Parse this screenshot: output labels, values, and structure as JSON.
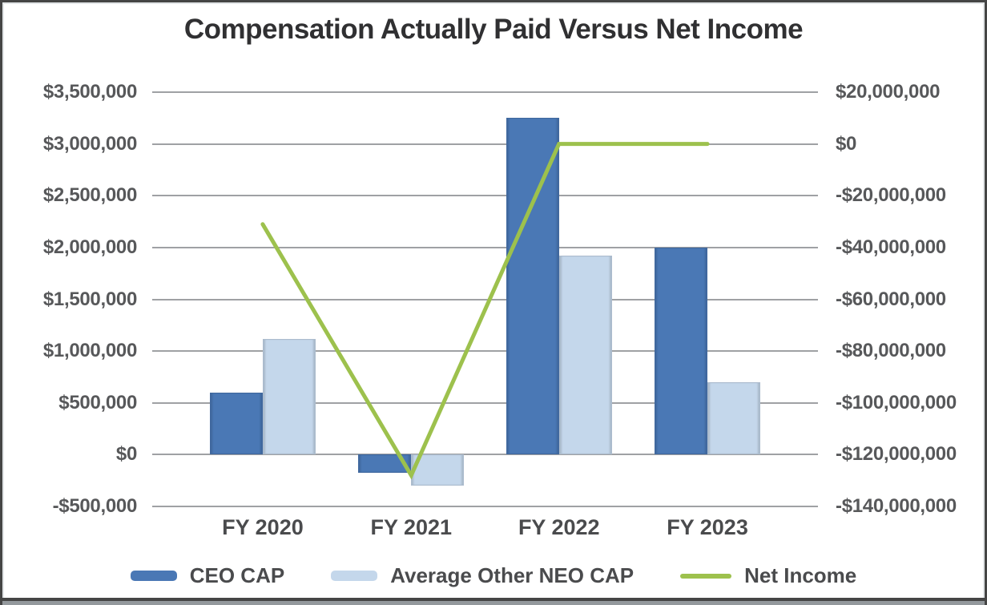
{
  "title": "Compensation Actually Paid Versus Net Income",
  "colors": {
    "ceo_cap": "#4a78b5",
    "neo_cap": "#c4d7eb",
    "net_income": "#9dc14d",
    "gridline": "#9fa1a4",
    "axis_text": "#57585a",
    "title_text": "#303032",
    "frame_border": "#454545"
  },
  "chart_data": {
    "type": "bar",
    "subtype": "grouped bars with overlay line (dual axis)",
    "title": "Compensation Actually Paid Versus Net Income",
    "categories": [
      "FY 2020",
      "FY 2021",
      "FY 2022",
      "FY 2023"
    ],
    "series": [
      {
        "name": "CEO CAP",
        "type": "bar",
        "axis": "left",
        "color": "#4a78b5",
        "values": [
          600000,
          -175000,
          3250000,
          2000000
        ]
      },
      {
        "name": "Average Other NEO CAP",
        "type": "bar",
        "axis": "left",
        "color": "#c4d7eb",
        "values": [
          1120000,
          -300000,
          1925000,
          700000
        ]
      },
      {
        "name": "Net Income",
        "type": "line",
        "axis": "right",
        "color": "#9dc14d",
        "values": [
          -31000000,
          -128000000,
          0,
          0
        ]
      }
    ],
    "left_axis": {
      "ylim": [
        -500000,
        3500000
      ],
      "tick_step": 500000,
      "tick_labels_top_to_bottom": [
        "$3,500,000",
        "$3,000,000",
        "$2,500,000",
        "$2,000,000",
        "$1,500,000",
        "$1,000,000",
        "$500,000",
        "$0",
        "-$500,000"
      ]
    },
    "right_axis": {
      "ylim": [
        -140000000,
        20000000
      ],
      "tick_step": 20000000,
      "tick_labels_top_to_bottom": [
        "$20,000,000",
        "$0",
        "-$20,000,000",
        "-$40,000,000",
        "-$60,000,000",
        "-$80,000,000",
        "-$100,000,000",
        "-$120,000,000",
        "-$140,000,000"
      ]
    },
    "grid": true,
    "legend_position": "bottom"
  }
}
